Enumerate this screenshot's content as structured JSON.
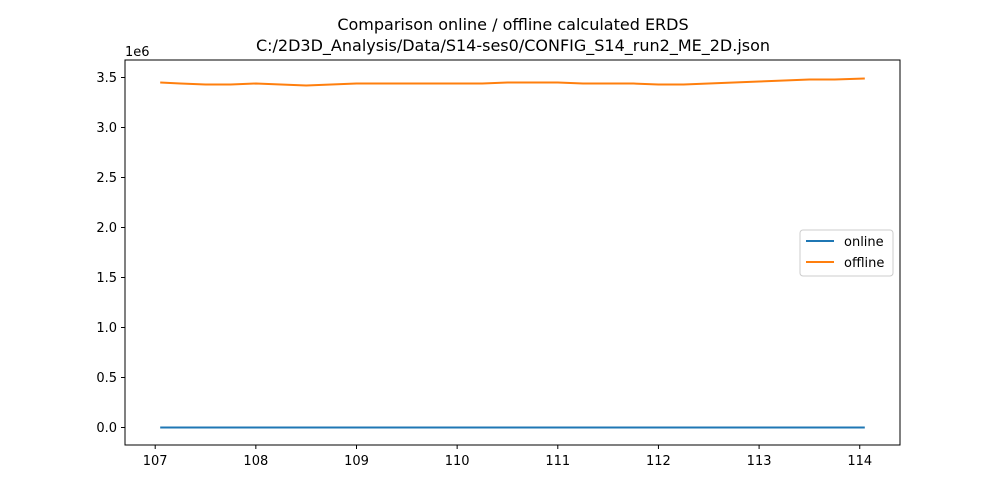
{
  "chart_data": {
    "type": "line",
    "title": "Comparison online / offline calculated ERDS",
    "subtitle": "C:/2D3D_Analysis/Data/S14-ses0/CONFIG_S14_run2_ME_2D.json",
    "xlabel": "",
    "ylabel": "",
    "y_offset_label": "1e6",
    "xlim": [
      106.7,
      114.4
    ],
    "ylim": [
      -0.175,
      3.675
    ],
    "y_scale_factor": 1000000,
    "x_ticks": [
      107,
      108,
      109,
      110,
      111,
      112,
      113,
      114
    ],
    "x_tick_labels": [
      "107",
      "108",
      "109",
      "110",
      "111",
      "112",
      "113",
      "114"
    ],
    "y_ticks": [
      0.0,
      0.5,
      1.0,
      1.5,
      2.0,
      2.5,
      3.0,
      3.5
    ],
    "y_tick_labels": [
      "0.0",
      "0.5",
      "1.0",
      "1.5",
      "2.0",
      "2.5",
      "3.0",
      "3.5"
    ],
    "grid": false,
    "legend_position": "center-right",
    "series": [
      {
        "name": "online",
        "color": "#1f77b4",
        "x": [
          107.05,
          108,
          109,
          110,
          111,
          112,
          113,
          114.05
        ],
        "y": [
          0,
          0,
          0,
          0,
          0,
          0,
          0,
          0
        ]
      },
      {
        "name": "offline",
        "color": "#ff7f0e",
        "x": [
          107.05,
          107.25,
          107.5,
          107.75,
          108.0,
          108.25,
          108.5,
          108.75,
          109.0,
          109.25,
          109.5,
          109.75,
          110.0,
          110.25,
          110.5,
          110.75,
          111.0,
          111.25,
          111.5,
          111.75,
          112.0,
          112.25,
          112.5,
          112.75,
          113.0,
          113.25,
          113.5,
          113.75,
          114.05
        ],
        "y": [
          3.45,
          3.44,
          3.43,
          3.43,
          3.44,
          3.43,
          3.42,
          3.43,
          3.44,
          3.44,
          3.44,
          3.44,
          3.44,
          3.44,
          3.45,
          3.45,
          3.45,
          3.44,
          3.44,
          3.44,
          3.43,
          3.43,
          3.44,
          3.45,
          3.46,
          3.47,
          3.48,
          3.48,
          3.49
        ]
      }
    ]
  }
}
